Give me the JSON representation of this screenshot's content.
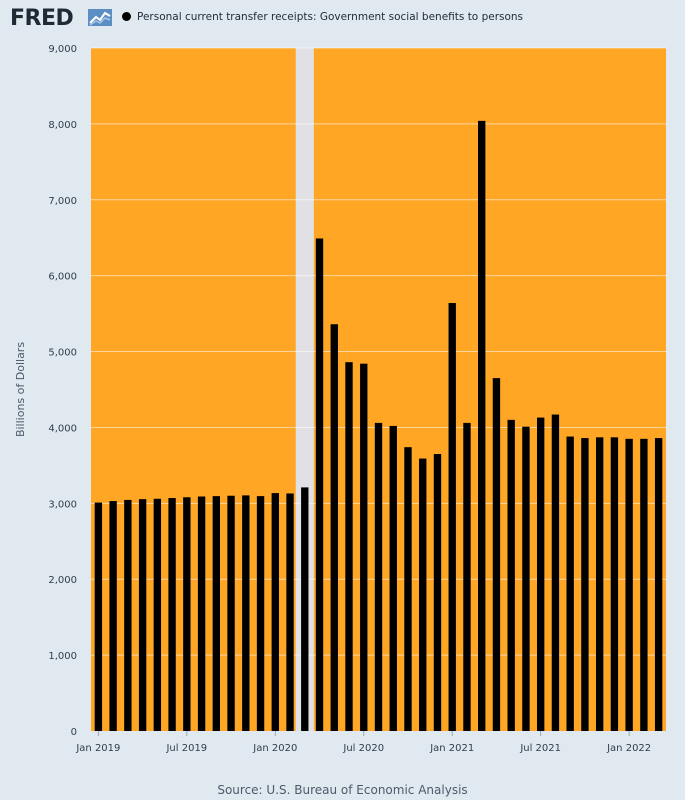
{
  "header": {
    "logo_text": "FRED",
    "logo_icon": "fred-chart-line-icon",
    "legend_label": "Personal current transfer receipts: Government social benefits to persons"
  },
  "colors": {
    "background": "#e1e9f0",
    "plot_fill": "#ffa624",
    "recession_band": "#e1e1e5",
    "bar": "#000000",
    "grid": "#ffffff"
  },
  "chart_data": {
    "type": "bar",
    "ylabel": "Billions of Dollars",
    "ylim": [
      0,
      9000
    ],
    "yticks": [
      0,
      1000,
      2000,
      3000,
      4000,
      5000,
      6000,
      7000,
      8000,
      9000
    ],
    "ytick_labels": [
      "0",
      "1,000",
      "2,000",
      "3,000",
      "4,000",
      "5,000",
      "6,000",
      "7,000",
      "8,000",
      "9,000"
    ],
    "grid": true,
    "legend_position": "top",
    "recession_shading": [
      "2020-02",
      "2020-04"
    ],
    "categories": [
      "2019-01",
      "2019-02",
      "2019-03",
      "2019-04",
      "2019-05",
      "2019-06",
      "2019-07",
      "2019-08",
      "2019-09",
      "2019-10",
      "2019-11",
      "2019-12",
      "2020-01",
      "2020-02",
      "2020-03",
      "2020-04",
      "2020-05",
      "2020-06",
      "2020-07",
      "2020-08",
      "2020-09",
      "2020-10",
      "2020-11",
      "2020-12",
      "2021-01",
      "2021-02",
      "2021-03",
      "2021-04",
      "2021-05",
      "2021-06",
      "2021-07",
      "2021-08",
      "2021-09",
      "2021-10",
      "2021-11",
      "2021-12",
      "2022-01",
      "2022-02",
      "2022-03"
    ],
    "series": [
      {
        "name": "Personal current transfer receipts: Government social benefits to persons",
        "values": [
          3010,
          3030,
          3045,
          3055,
          3060,
          3070,
          3080,
          3090,
          3095,
          3100,
          3105,
          3095,
          3135,
          3130,
          3210,
          6490,
          5360,
          4860,
          4840,
          4060,
          4020,
          3740,
          3590,
          3650,
          5640,
          4060,
          8040,
          4650,
          4100,
          4010,
          4130,
          4170,
          3880,
          3860,
          3870,
          3870,
          3850,
          3850,
          3860
        ]
      }
    ],
    "xtick_labels": [
      {
        "label": "Jan 2019",
        "category": "2019-01"
      },
      {
        "label": "Jul 2019",
        "category": "2019-07"
      },
      {
        "label": "Jan 2020",
        "category": "2020-01"
      },
      {
        "label": "Jul 2020",
        "category": "2020-07"
      },
      {
        "label": "Jan 2021",
        "category": "2021-01"
      },
      {
        "label": "Jul 2021",
        "category": "2021-07"
      },
      {
        "label": "Jan 2022",
        "category": "2022-01"
      }
    ]
  },
  "footer": {
    "source": "Source: U.S. Bureau of Economic Analysis"
  }
}
